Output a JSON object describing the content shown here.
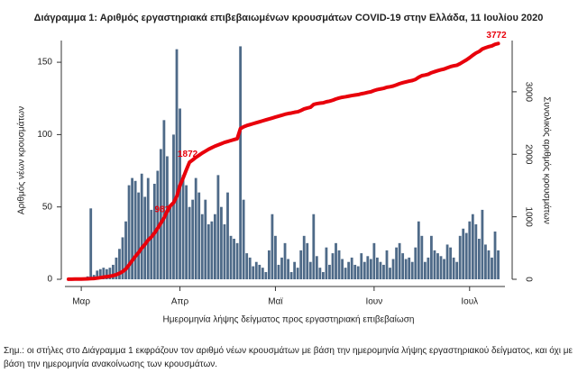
{
  "chart_data": {
    "type": "bar",
    "title": "Διάγραμμα 1: Αριθμός εργαστηριακά επιβεβαιωμένων κρουσμάτων COVID-19 στην Ελλάδα, 11 Ιουλίου 2020",
    "xlabel": "Ημερομηνία λήψης δείγματος προς εργαστηριακή επιβεβαίωση",
    "ylabel": "Αριθμός νέων κρουσμάτων",
    "y2label": "Συνολικός αριθμός κρουσμάτων",
    "note": "Σημ.: οι στήλες στο Διάγραμμα 1 εκφράζουν τον αριθμό νέων κρουσμάτων με βάση την ημερομηνία λήψης εργαστηριακού δείγματος, και όχι με βάση την ημερομηνία ανακοίνωσης των κρουσμάτων.",
    "categories": [
      null,
      null,
      null,
      null,
      "Μαρ",
      null,
      null,
      null,
      null,
      null,
      null,
      null,
      null,
      null,
      null,
      null,
      null,
      null,
      null,
      null,
      null,
      null,
      null,
      null,
      null,
      null,
      null,
      null,
      null,
      null,
      null,
      null,
      null,
      null,
      null,
      "Απρ",
      null,
      null,
      null,
      null,
      null,
      null,
      null,
      null,
      null,
      null,
      null,
      null,
      null,
      null,
      null,
      null,
      null,
      null,
      null,
      null,
      null,
      null,
      null,
      null,
      null,
      null,
      null,
      null,
      null,
      "Μαϊ",
      null,
      null,
      null,
      null,
      null,
      null,
      null,
      null,
      null,
      null,
      null,
      null,
      null,
      null,
      null,
      null,
      null,
      null,
      null,
      null,
      null,
      null,
      null,
      null,
      null,
      null,
      null,
      null,
      null,
      null,
      "Ιουν",
      null,
      null,
      null,
      null,
      null,
      null,
      null,
      null,
      null,
      null,
      null,
      null,
      null,
      null,
      null,
      null,
      null,
      null,
      null,
      null,
      null,
      null,
      null,
      null,
      null,
      null,
      null,
      null,
      null,
      "Ιουλ",
      null,
      null,
      null,
      null,
      null,
      null,
      null,
      null,
      null
    ],
    "series": [
      {
        "color": "#4e6a88",
        "values": [
          1,
          1,
          1,
          0,
          1,
          1,
          2,
          49,
          3,
          6,
          7,
          8,
          7,
          8,
          10,
          15,
          21,
          29,
          40,
          65,
          70,
          68,
          60,
          73,
          57,
          70,
          48,
          66,
          75,
          90,
          110,
          85,
          50,
          100,
          159,
          118,
          72,
          65,
          50,
          55,
          70,
          60,
          45,
          55,
          38,
          40,
          45,
          72,
          50,
          38,
          60,
          30,
          28,
          25,
          161,
          55,
          18,
          15,
          9,
          12,
          10,
          8,
          5,
          20,
          45,
          30,
          10,
          15,
          25,
          14,
          5,
          12,
          8,
          20,
          30,
          25,
          12,
          45,
          16,
          8,
          5,
          22,
          10,
          18,
          25,
          20,
          14,
          8,
          12,
          15,
          10,
          9,
          18,
          12,
          16,
          14,
          25,
          15,
          12,
          10,
          20,
          8,
          14,
          22,
          25,
          18,
          14,
          15,
          12,
          22,
          40,
          30,
          12,
          15,
          30,
          20,
          18,
          16,
          14,
          24,
          22,
          15,
          12,
          30,
          35,
          32,
          40,
          45,
          38,
          28,
          48,
          24,
          20,
          15,
          33,
          20
        ]
      },
      {
        "type": "line",
        "axis": "y2",
        "color": "#e8000b",
        "values": [
          1,
          2,
          3,
          3,
          4,
          5,
          7,
          10,
          13,
          19,
          26,
          34,
          41,
          49,
          59,
          74,
          95,
          124,
          164,
          229,
          299,
          367,
          427,
          500,
          557,
          627,
          675,
          741,
          816,
          900,
          981,
          1091,
          1176,
          1226,
          1326,
          1500,
          1620,
          1750,
          1872,
          1910,
          1950,
          1985,
          2020,
          2050,
          2080,
          2105,
          2130,
          2150,
          2170,
          2190,
          2205,
          2220,
          2235,
          2250,
          2411,
          2440,
          2460,
          2475,
          2490,
          2505,
          2520,
          2535,
          2550,
          2565,
          2580,
          2595,
          2610,
          2625,
          2640,
          2652,
          2660,
          2672,
          2680,
          2700,
          2725,
          2740,
          2752,
          2797,
          2810,
          2818,
          2823,
          2840,
          2850,
          2865,
          2885,
          2900,
          2912,
          2920,
          2930,
          2940,
          2948,
          2955,
          2968,
          2978,
          2990,
          3000,
          3020,
          3035,
          3045,
          3055,
          3072,
          3080,
          3092,
          3110,
          3130,
          3145,
          3158,
          3170,
          3180,
          3198,
          3232,
          3258,
          3268,
          3280,
          3305,
          3322,
          3338,
          3352,
          3364,
          3384,
          3402,
          3415,
          3425,
          3450,
          3480,
          3510,
          3545,
          3585,
          3620,
          3645,
          3685,
          3705,
          3722,
          3735,
          3760,
          3772
        ],
        "value_labels": [
          null,
          null,
          null,
          null,
          null,
          null,
          null,
          null,
          null,
          null,
          null,
          null,
          null,
          null,
          null,
          null,
          null,
          null,
          null,
          null,
          null,
          null,
          null,
          null,
          null,
          null,
          null,
          null,
          null,
          null,
          "981",
          null,
          null,
          null,
          null,
          null,
          null,
          null,
          "1872",
          null,
          null,
          null,
          null,
          null,
          null,
          null,
          null,
          null,
          null,
          null,
          null,
          null,
          null,
          null,
          null,
          null,
          null,
          null,
          null,
          null,
          null,
          null,
          null,
          null,
          null,
          null,
          null,
          null,
          null,
          null,
          null,
          null,
          null,
          null,
          null,
          null,
          null,
          null,
          null,
          null,
          null,
          null,
          null,
          null,
          null,
          null,
          null,
          null,
          null,
          null,
          null,
          null,
          null,
          null,
          null,
          null,
          null,
          null,
          null,
          null,
          null,
          null,
          null,
          null,
          null,
          null,
          null,
          null,
          null,
          null,
          null,
          null,
          null,
          null,
          null,
          null,
          null,
          null,
          null,
          null,
          null,
          null,
          null,
          null,
          null,
          null,
          null,
          null,
          null,
          null,
          null,
          null,
          null,
          null,
          null,
          "3772"
        ]
      }
    ],
    "ylim": [
      0,
      165
    ],
    "yticks": [
      0,
      50,
      100,
      150
    ],
    "y2lim": [
      0,
      3820
    ],
    "y2ticks": [
      0,
      1000,
      2000,
      3000
    ]
  }
}
